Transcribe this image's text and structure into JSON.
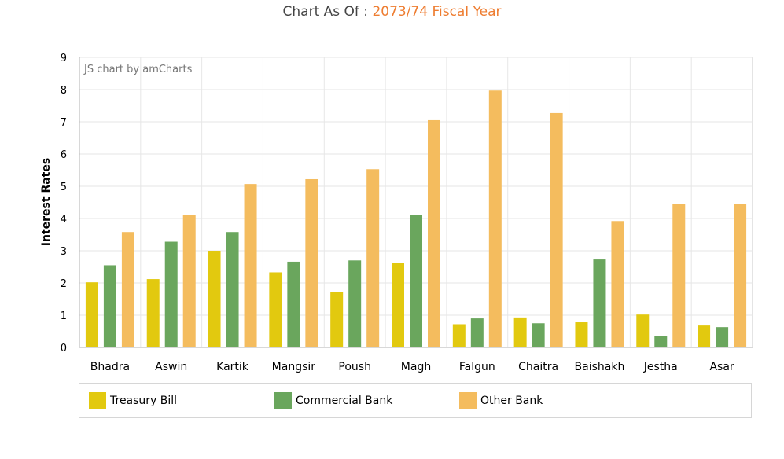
{
  "title": {
    "prefix": "Chart As Of : ",
    "highlight": "2073/74 Fiscal Year"
  },
  "credit": "JS chart by amCharts",
  "colors": {
    "treasury": "#e2c90f",
    "commercial": "#6aa65d",
    "other": "#f4bc5e",
    "title_accent": "#ee7d31"
  },
  "chart_data": {
    "type": "bar",
    "ylabel": "Interest Rates",
    "xlabel": "",
    "ylim": [
      0,
      9
    ],
    "yticks": [
      "0",
      "1",
      "2",
      "3",
      "4",
      "5",
      "6",
      "7",
      "8",
      "9"
    ],
    "grid": true,
    "legend_position": "bottom",
    "categories": [
      "Bhadra",
      "Aswin",
      "Kartik",
      "Mangsir",
      "Poush",
      "Magh",
      "Falgun",
      "Chaitra",
      "Baishakh",
      "Jestha",
      "Asar"
    ],
    "series": [
      {
        "name": "Treasury Bill",
        "color": "#e2c90f",
        "values": [
          2.02,
          2.12,
          3.0,
          2.33,
          1.72,
          2.63,
          0.72,
          0.93,
          0.78,
          1.02,
          0.68
        ]
      },
      {
        "name": "Commercial Bank",
        "color": "#6aa65d",
        "values": [
          2.55,
          3.28,
          3.58,
          2.66,
          2.7,
          4.12,
          0.9,
          0.75,
          2.73,
          0.35,
          0.63
        ]
      },
      {
        "name": "Other Bank",
        "color": "#f4bc5e",
        "values": [
          3.58,
          4.12,
          5.07,
          5.22,
          5.53,
          7.05,
          7.97,
          7.27,
          3.92,
          4.46,
          4.46
        ]
      }
    ]
  }
}
